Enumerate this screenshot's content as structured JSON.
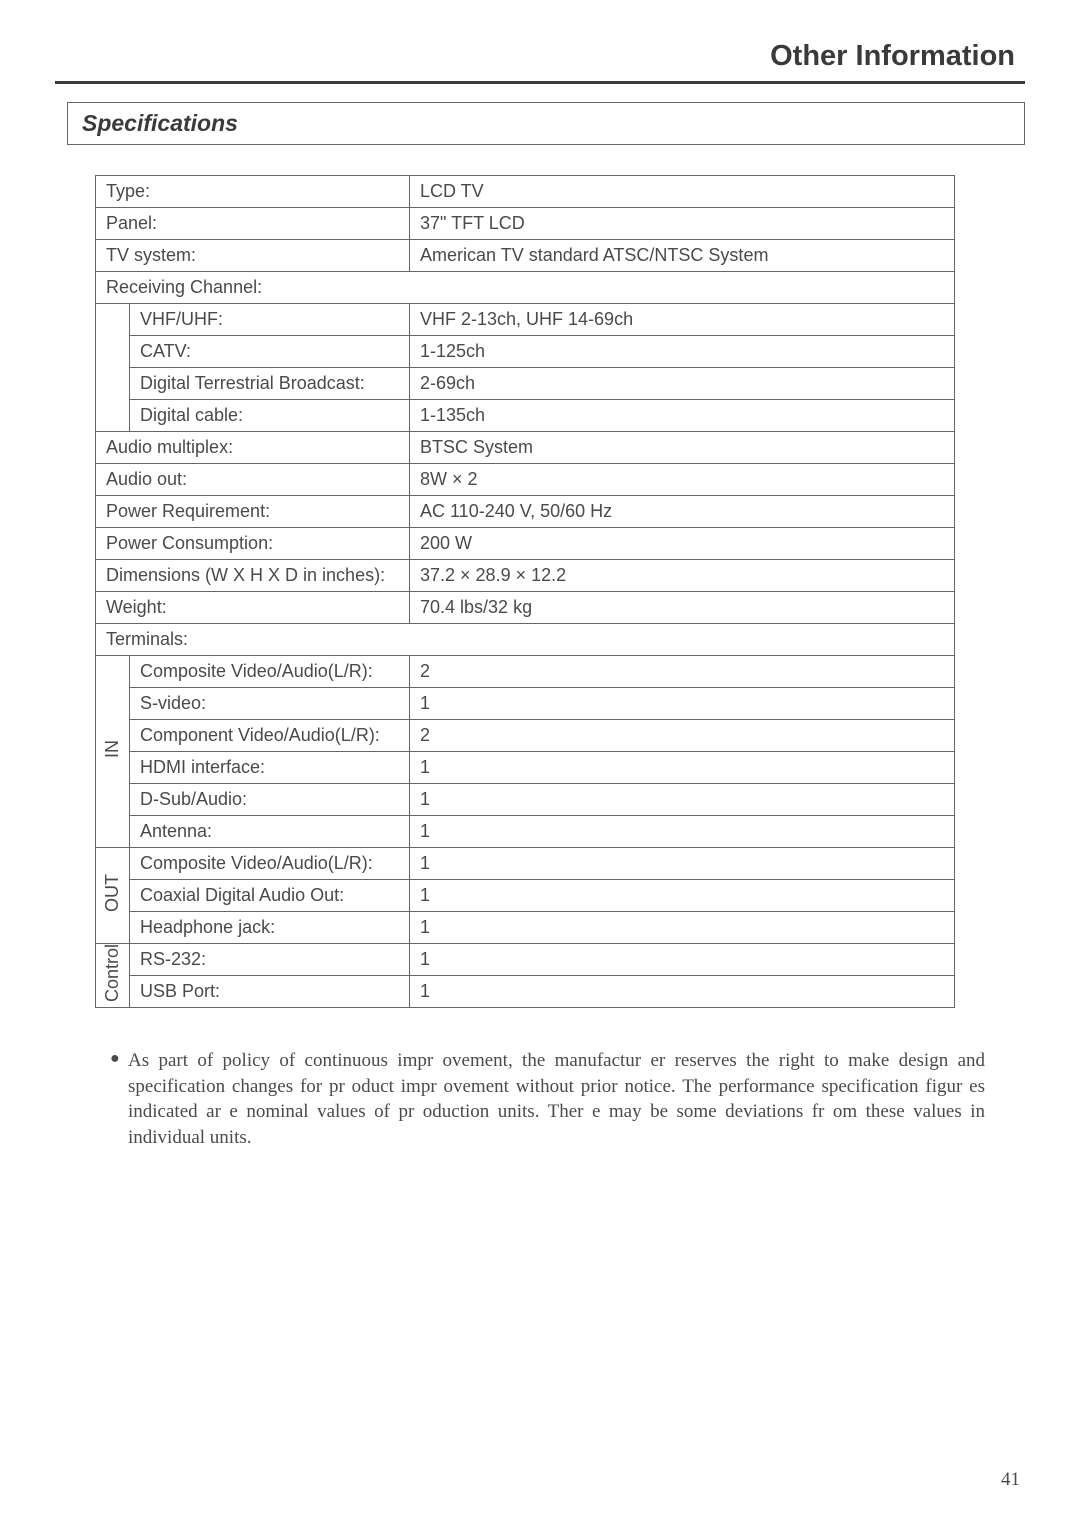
{
  "header": {
    "title": "Other Information"
  },
  "section": {
    "title": "Specifications"
  },
  "table": {
    "columns_width": {
      "side": 34,
      "label": 280
    },
    "border_color": "#666666",
    "text_color": "#4a4a4a",
    "fontsize": 18,
    "rows": {
      "type": {
        "label": "Type:",
        "value": "LCD TV"
      },
      "panel": {
        "label": "Panel:",
        "value": "37\"  TFT LCD"
      },
      "tv_system": {
        "label": "TV system:",
        "value": "American TV standard ATSC/NTSC System"
      },
      "recv_channel": {
        "label": "Receiving Channel:"
      },
      "vhf_uhf": {
        "label": "VHF/UHF:",
        "value": "VHF 2-13ch, UHF 14-69ch"
      },
      "catv": {
        "label": "CATV:",
        "value": "1-125ch"
      },
      "dtb": {
        "label": "Digital Terrestrial Broadcast:",
        "value": "2-69ch"
      },
      "dcable": {
        "label": "Digital cable:",
        "value": "1-135ch"
      },
      "audio_mux": {
        "label": "Audio multiplex:",
        "value": "BTSC System"
      },
      "audio_out": {
        "label": "Audio out:",
        "value": "8W × 2"
      },
      "power_req": {
        "label": "Power Requirement:",
        "value": "AC 110-240 V, 50/60 Hz"
      },
      "power_cons": {
        "label": "Power Consumption:",
        "value": "200 W"
      },
      "dimensions": {
        "label": "Dimensions (W X H X D in inches):",
        "value": "37.2 × 28.9 × 12.2"
      },
      "weight": {
        "label": "Weight:",
        "value": "70.4 lbs/32 kg"
      },
      "terminals": {
        "label": "Terminals:"
      },
      "in_label": "IN",
      "in_comp_va": {
        "label": "Composite Video/Audio(L/R):",
        "value": "2"
      },
      "in_svideo": {
        "label": "S-video:",
        "value": "1"
      },
      "in_component": {
        "label": "Component Video/Audio(L/R):",
        "value": "2"
      },
      "in_hdmi": {
        "label": "HDMI interface:",
        "value": "1"
      },
      "in_dsub": {
        "label": "D-Sub/Audio:",
        "value": "1"
      },
      "in_antenna": {
        "label": "Antenna:",
        "value": "1"
      },
      "out_label": "OUT",
      "out_comp_va": {
        "label": "Composite Video/Audio(L/R):",
        "value": "1"
      },
      "out_coax": {
        "label": "Coaxial Digital Audio Out:",
        "value": "1"
      },
      "out_headph": {
        "label": "Headphone jack:",
        "value": "1"
      },
      "ctrl_label": "Control",
      "ctrl_rs232": {
        "label": "RS-232:",
        "value": "1"
      },
      "ctrl_usb": {
        "label": "USB Port:",
        "value": "1"
      }
    }
  },
  "note": {
    "bullet": "●",
    "text": "As part  of policy of continuous  impr ovement, the manufactur  er reserves the right  to make design and specification changes for pr oduct impr ovement without prior notice. The performance specification  figur es indicated  ar e nominal  values of pr oduction  units. Ther e may be some deviations  fr om these values in individual  units."
  },
  "page_number": "41"
}
